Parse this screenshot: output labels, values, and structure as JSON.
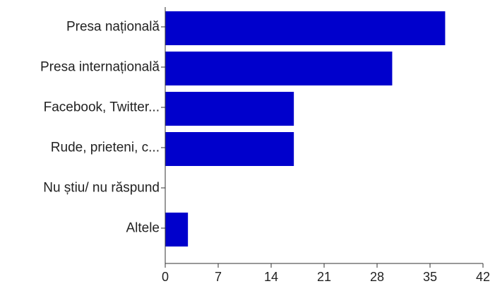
{
  "chart_data": {
    "type": "bar",
    "orientation": "horizontal",
    "categories": [
      "Presa națională",
      "Presa internațională",
      "Facebook, Twitter...",
      "Rude, prieteni, c...",
      "Nu știu/ nu răspund",
      "Altele"
    ],
    "values": [
      37,
      30,
      17,
      17,
      0,
      3
    ],
    "xlim": [
      0,
      42
    ],
    "xticks": [
      "0",
      "7",
      "14",
      "21",
      "28",
      "35",
      "42"
    ],
    "grid": false,
    "bar_color": "#0000cc",
    "title": "",
    "xlabel": "",
    "ylabel": ""
  }
}
